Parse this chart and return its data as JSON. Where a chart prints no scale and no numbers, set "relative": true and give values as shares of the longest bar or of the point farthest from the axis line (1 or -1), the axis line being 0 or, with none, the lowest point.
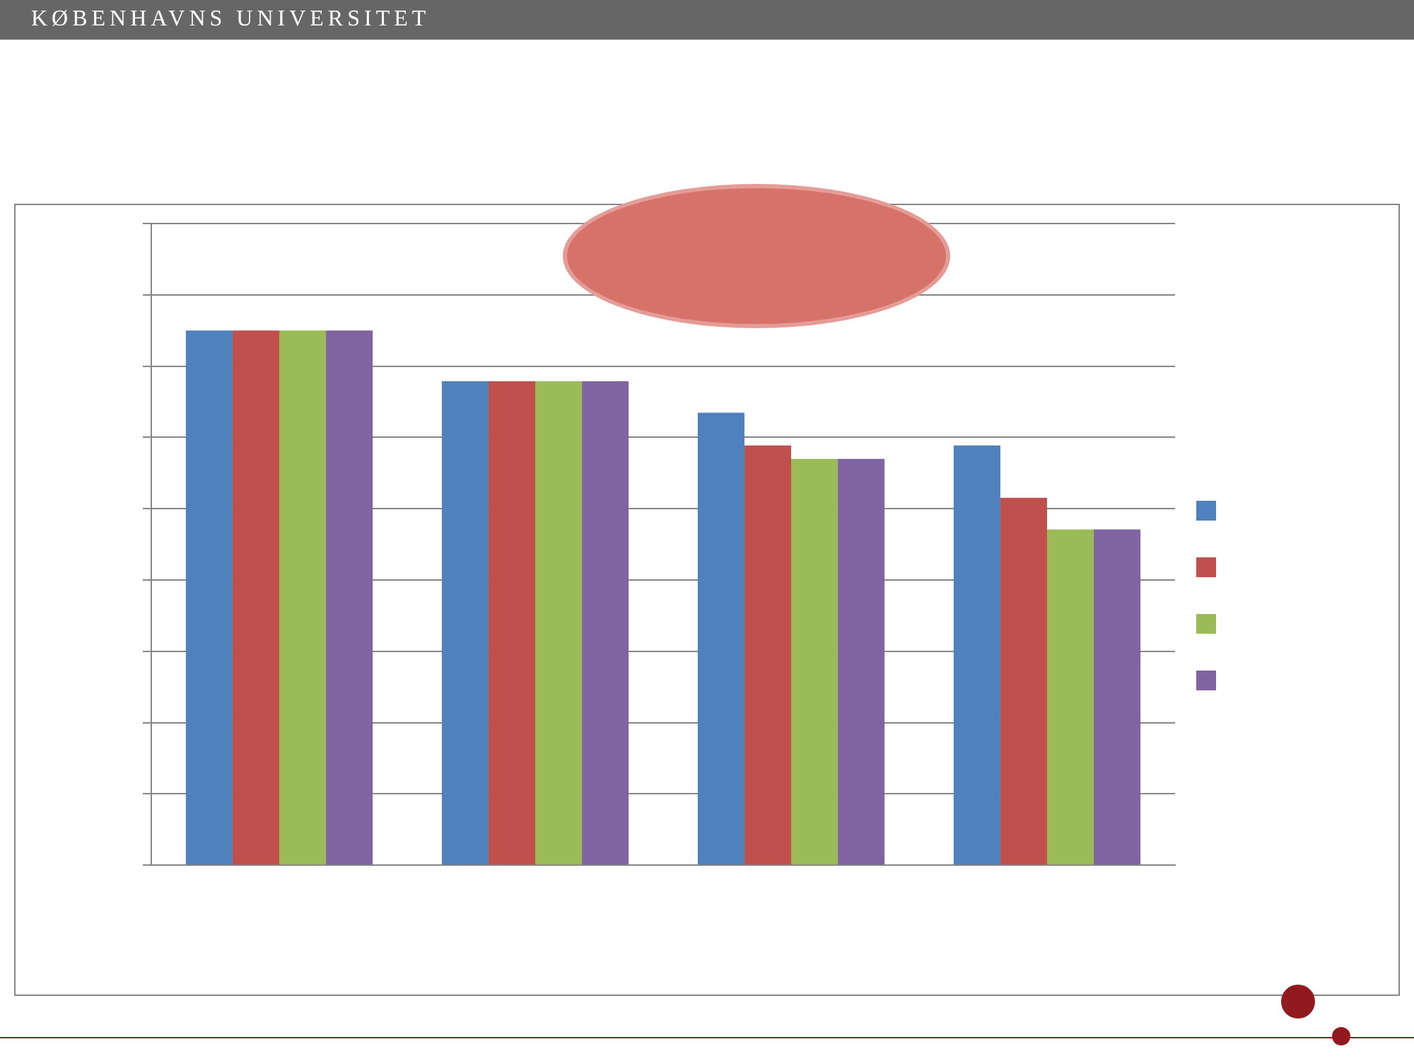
{
  "chart_data": {
    "type": "bar",
    "title": "KØBENHAVNS UNIVERSITET",
    "categories": [
      null,
      null,
      null,
      null
    ],
    "relative": true,
    "grid": "y",
    "series": [
      {
        "color": "#4f81bd",
        "values": [
          1,
          0.905,
          0.846,
          0.785
        ]
      },
      {
        "color": "#c0504d",
        "values": [
          1,
          0.905,
          0.785,
          0.687
        ]
      },
      {
        "color": "#9bbb59",
        "values": [
          1,
          0.905,
          0.76,
          0.628
        ]
      },
      {
        "color": "#8064a2",
        "values": [
          1,
          0.905,
          0.76,
          0.628
        ]
      }
    ]
  }
}
